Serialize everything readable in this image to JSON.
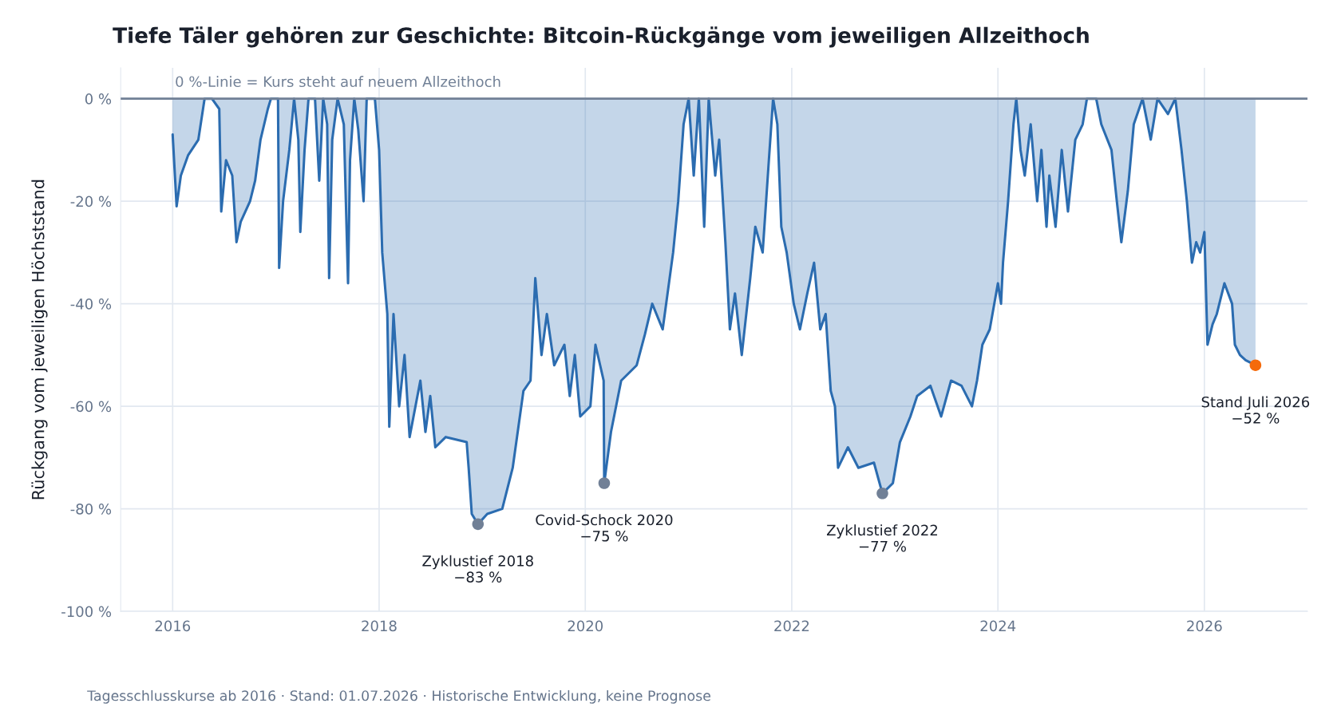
{
  "chart_data": {
    "type": "area",
    "title": "Tiefe Täler gehören zur Geschichte: Bitcoin-Rückgänge vom jeweiligen Allzeithoch",
    "ylabel": "Rückgang vom jeweiligen Höchststand",
    "xlim": [
      "2015-07-01",
      "2027-01-01"
    ],
    "xticks": [
      {
        "value": "2016-01-01",
        "label": "2016"
      },
      {
        "value": "2018-01-01",
        "label": "2018"
      },
      {
        "value": "2020-01-01",
        "label": "2020"
      },
      {
        "value": "2022-01-01",
        "label": "2022"
      },
      {
        "value": "2024-01-01",
        "label": "2024"
      },
      {
        "value": "2026-01-01",
        "label": "2026"
      }
    ],
    "ylim": [
      -100,
      6
    ],
    "yticks": [
      {
        "value": 0,
        "label": "0 %"
      },
      {
        "value": -20,
        "label": "-20 %"
      },
      {
        "value": -40,
        "label": "-40 %"
      },
      {
        "value": -60,
        "label": "-60 %"
      },
      {
        "value": -80,
        "label": "-80 %"
      },
      {
        "value": -100,
        "label": "-100 %"
      }
    ],
    "grid": true,
    "series": [
      {
        "color": "#2b6cb0",
        "x": [
          "2016-01-01",
          "2016-01-15",
          "2016-01-30",
          "2016-02-25",
          "2016-04-01",
          "2016-04-23",
          "2016-05-19",
          "2016-06-14",
          "2016-06-21",
          "2016-07-08",
          "2016-07-30",
          "2016-08-14",
          "2016-08-29",
          "2016-10-01",
          "2016-10-19",
          "2016-11-07",
          "2016-12-03",
          "2016-12-14",
          "2017-01-08",
          "2017-01-12",
          "2017-01-26",
          "2017-02-17",
          "2017-03-06",
          "2017-03-21",
          "2017-03-28",
          "2017-04-12",
          "2017-04-26",
          "2017-05-19",
          "2017-06-03",
          "2017-06-17",
          "2017-07-01",
          "2017-07-08",
          "2017-07-19",
          "2017-08-07",
          "2017-08-29",
          "2017-09-13",
          "2017-09-20",
          "2017-10-05",
          "2017-10-19",
          "2017-11-07",
          "2017-11-18",
          "2017-12-17",
          "2018-01-01",
          "2018-01-12",
          "2018-01-30",
          "2018-02-06",
          "2018-02-21",
          "2018-03-13",
          "2018-04-01",
          "2018-04-19",
          "2018-05-27",
          "2018-06-14",
          "2018-07-01",
          "2018-07-19",
          "2018-08-25",
          "2018-11-07",
          "2018-11-14",
          "2018-11-25",
          "2018-12-17",
          "2019-01-19",
          "2019-03-13",
          "2019-04-19",
          "2019-05-27",
          "2019-06-21",
          "2019-07-08",
          "2019-07-30",
          "2019-08-18",
          "2019-09-13",
          "2019-10-19",
          "2019-11-07",
          "2019-11-25",
          "2019-12-14",
          "2020-01-19",
          "2020-02-06",
          "2020-03-06",
          "2020-03-08",
          "2020-04-01",
          "2020-05-07",
          "2020-07-01",
          "2020-07-30",
          "2020-08-25",
          "2020-10-01",
          "2020-11-07",
          "2020-11-25",
          "2020-12-14",
          "2021-01-01",
          "2021-01-19",
          "2021-02-06",
          "2021-02-25",
          "2021-03-13",
          "2021-04-05",
          "2021-04-19",
          "2021-05-11",
          "2021-05-27",
          "2021-06-14",
          "2021-07-08",
          "2021-08-07",
          "2021-08-25",
          "2021-09-20",
          "2021-10-12",
          "2021-10-27",
          "2021-11-11",
          "2021-11-25",
          "2021-12-14",
          "2022-01-08",
          "2022-01-30",
          "2022-02-25",
          "2022-03-21",
          "2022-04-12",
          "2022-05-01",
          "2022-05-19",
          "2022-06-03",
          "2022-06-14",
          "2022-07-19",
          "2022-08-25",
          "2022-10-19",
          "2022-11-18",
          "2022-12-25",
          "2023-01-19",
          "2023-02-25",
          "2023-03-21",
          "2023-05-07",
          "2023-06-14",
          "2023-07-19",
          "2023-08-25",
          "2023-10-01",
          "2023-10-19",
          "2023-11-07",
          "2023-12-03",
          "2024-01-01",
          "2024-01-12",
          "2024-01-19",
          "2024-02-06",
          "2024-02-25",
          "2024-03-06",
          "2024-03-21",
          "2024-04-05",
          "2024-04-26",
          "2024-05-19",
          "2024-06-03",
          "2024-06-21",
          "2024-07-01",
          "2024-07-23",
          "2024-08-14",
          "2024-09-05",
          "2024-10-01",
          "2024-10-27",
          "2024-11-11",
          "2024-12-14",
          "2025-01-01",
          "2025-02-06",
          "2025-02-25",
          "2025-03-13",
          "2025-04-05",
          "2025-04-26",
          "2025-05-27",
          "2025-06-25",
          "2025-07-19",
          "2025-08-25",
          "2025-09-20",
          "2025-10-12",
          "2025-10-31",
          "2025-11-18",
          "2025-12-03",
          "2025-12-17",
          "2026-01-01",
          "2026-01-12",
          "2026-01-30",
          "2026-02-14",
          "2026-03-13",
          "2026-04-09",
          "2026-04-19",
          "2026-05-07",
          "2026-05-27",
          "2026-07-01"
        ],
        "values": [
          -7,
          -21,
          -15,
          -11,
          -8,
          0,
          0,
          -2,
          -22,
          -12,
          -15,
          -28,
          -24,
          -20,
          -16,
          -8,
          -2,
          0,
          0,
          -33,
          -20,
          -10,
          0,
          -8,
          -26,
          -10,
          0,
          0,
          -16,
          0,
          -5,
          -35,
          -8,
          0,
          -5,
          -36,
          -12,
          0,
          -6,
          -20,
          0,
          0,
          -10,
          -30,
          -42,
          -64,
          -42,
          -60,
          -50,
          -66,
          -55,
          -65,
          -58,
          -68,
          -66,
          -67,
          -72,
          -81,
          -83,
          -81,
          -80,
          -72,
          -57,
          -55,
          -35,
          -50,
          -42,
          -52,
          -48,
          -58,
          -50,
          -62,
          -60,
          -48,
          -55,
          -75,
          -65,
          -55,
          -52,
          -46,
          -40,
          -45,
          -30,
          -20,
          -5,
          0,
          -15,
          0,
          -25,
          0,
          -15,
          -8,
          -28,
          -45,
          -38,
          -50,
          -35,
          -25,
          -30,
          -12,
          0,
          -5,
          -25,
          -30,
          -40,
          -45,
          -38,
          -32,
          -45,
          -42,
          -57,
          -60,
          -72,
          -68,
          -72,
          -71,
          -77,
          -75,
          -67,
          -62,
          -58,
          -56,
          -62,
          -55,
          -56,
          -60,
          -55,
          -48,
          -45,
          -36,
          -40,
          -32,
          -20,
          -5,
          0,
          -10,
          -15,
          -5,
          -20,
          -10,
          -25,
          -15,
          -25,
          -10,
          -22,
          -8,
          -5,
          0,
          0,
          -5,
          -10,
          -20,
          -28,
          -18,
          -5,
          0,
          -8,
          0,
          -3,
          0,
          -10,
          -20,
          -32,
          -28,
          -30,
          -26,
          -48,
          -44,
          -42,
          -36,
          -40,
          -48,
          -50,
          -51,
          -52
        ]
      },
      {
        "type": "scatter",
        "color": "#718096",
        "x": [
          "2018-12-17",
          "2020-03-08",
          "2022-11-18"
        ],
        "values": [
          -83,
          -75,
          -77
        ]
      },
      {
        "type": "scatter",
        "color": "#f56a0b",
        "x": [
          "2026-07-01"
        ],
        "values": [
          -52
        ]
      }
    ],
    "ref_lines": [
      {
        "axis": "y",
        "value": 0,
        "label": "0 %-Linie = Kurs steht auf neuem Allzeithoch",
        "color": "#718096"
      }
    ],
    "annotations": [
      {
        "text": "Zyklustief 2018\n−83 %",
        "x": "2018-12-17",
        "y": -83
      },
      {
        "text": "Covid-Schock 2020\n−75 %",
        "x": "2020-03-08",
        "y": -75
      },
      {
        "text": "Zyklustief 2022\n−77 %",
        "x": "2022-11-18",
        "y": -77
      },
      {
        "text": "Stand Juli 2026\n−52 %",
        "x": "2026-07-01",
        "y": -52
      },
      "Tagesschlusskurse ab 2016 · Stand: 01.07.2026 · Historische Entwicklung, keine Prognose"
    ]
  }
}
